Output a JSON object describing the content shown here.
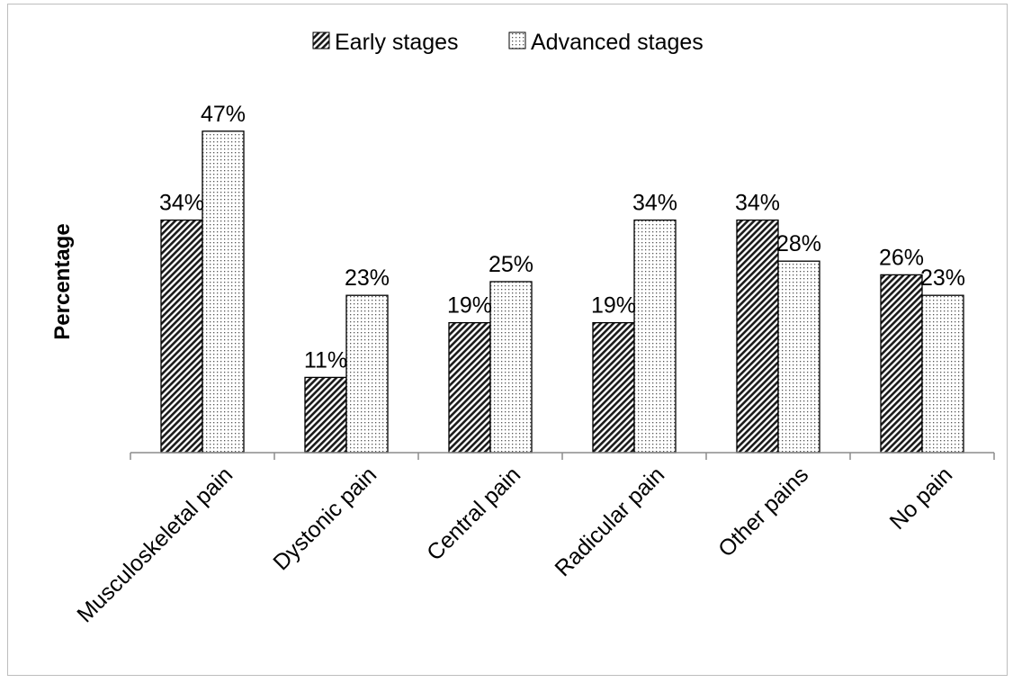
{
  "chart_data": {
    "type": "bar",
    "title": "",
    "xlabel": "",
    "ylabel": "Percentage",
    "ylim": [
      0,
      50
    ],
    "grid": false,
    "legend_position": "top-center",
    "categories": [
      "Musculoskeletal pain",
      "Dystonic pain",
      "Central pain",
      "Radicular pain",
      "Other pains",
      "No pain"
    ],
    "series": [
      {
        "name": "Early stages",
        "pattern": "diagonal-hatch",
        "values": [
          34,
          11,
          19,
          19,
          34,
          26
        ],
        "labels": [
          "34%",
          "11%",
          "19%",
          "19%",
          "34%",
          "26%"
        ]
      },
      {
        "name": "Advanced stages",
        "pattern": "dots",
        "values": [
          47,
          23,
          25,
          34,
          28,
          23
        ],
        "labels": [
          "47%",
          "23%",
          "25%",
          "34%",
          "28%",
          "23%"
        ]
      }
    ]
  }
}
